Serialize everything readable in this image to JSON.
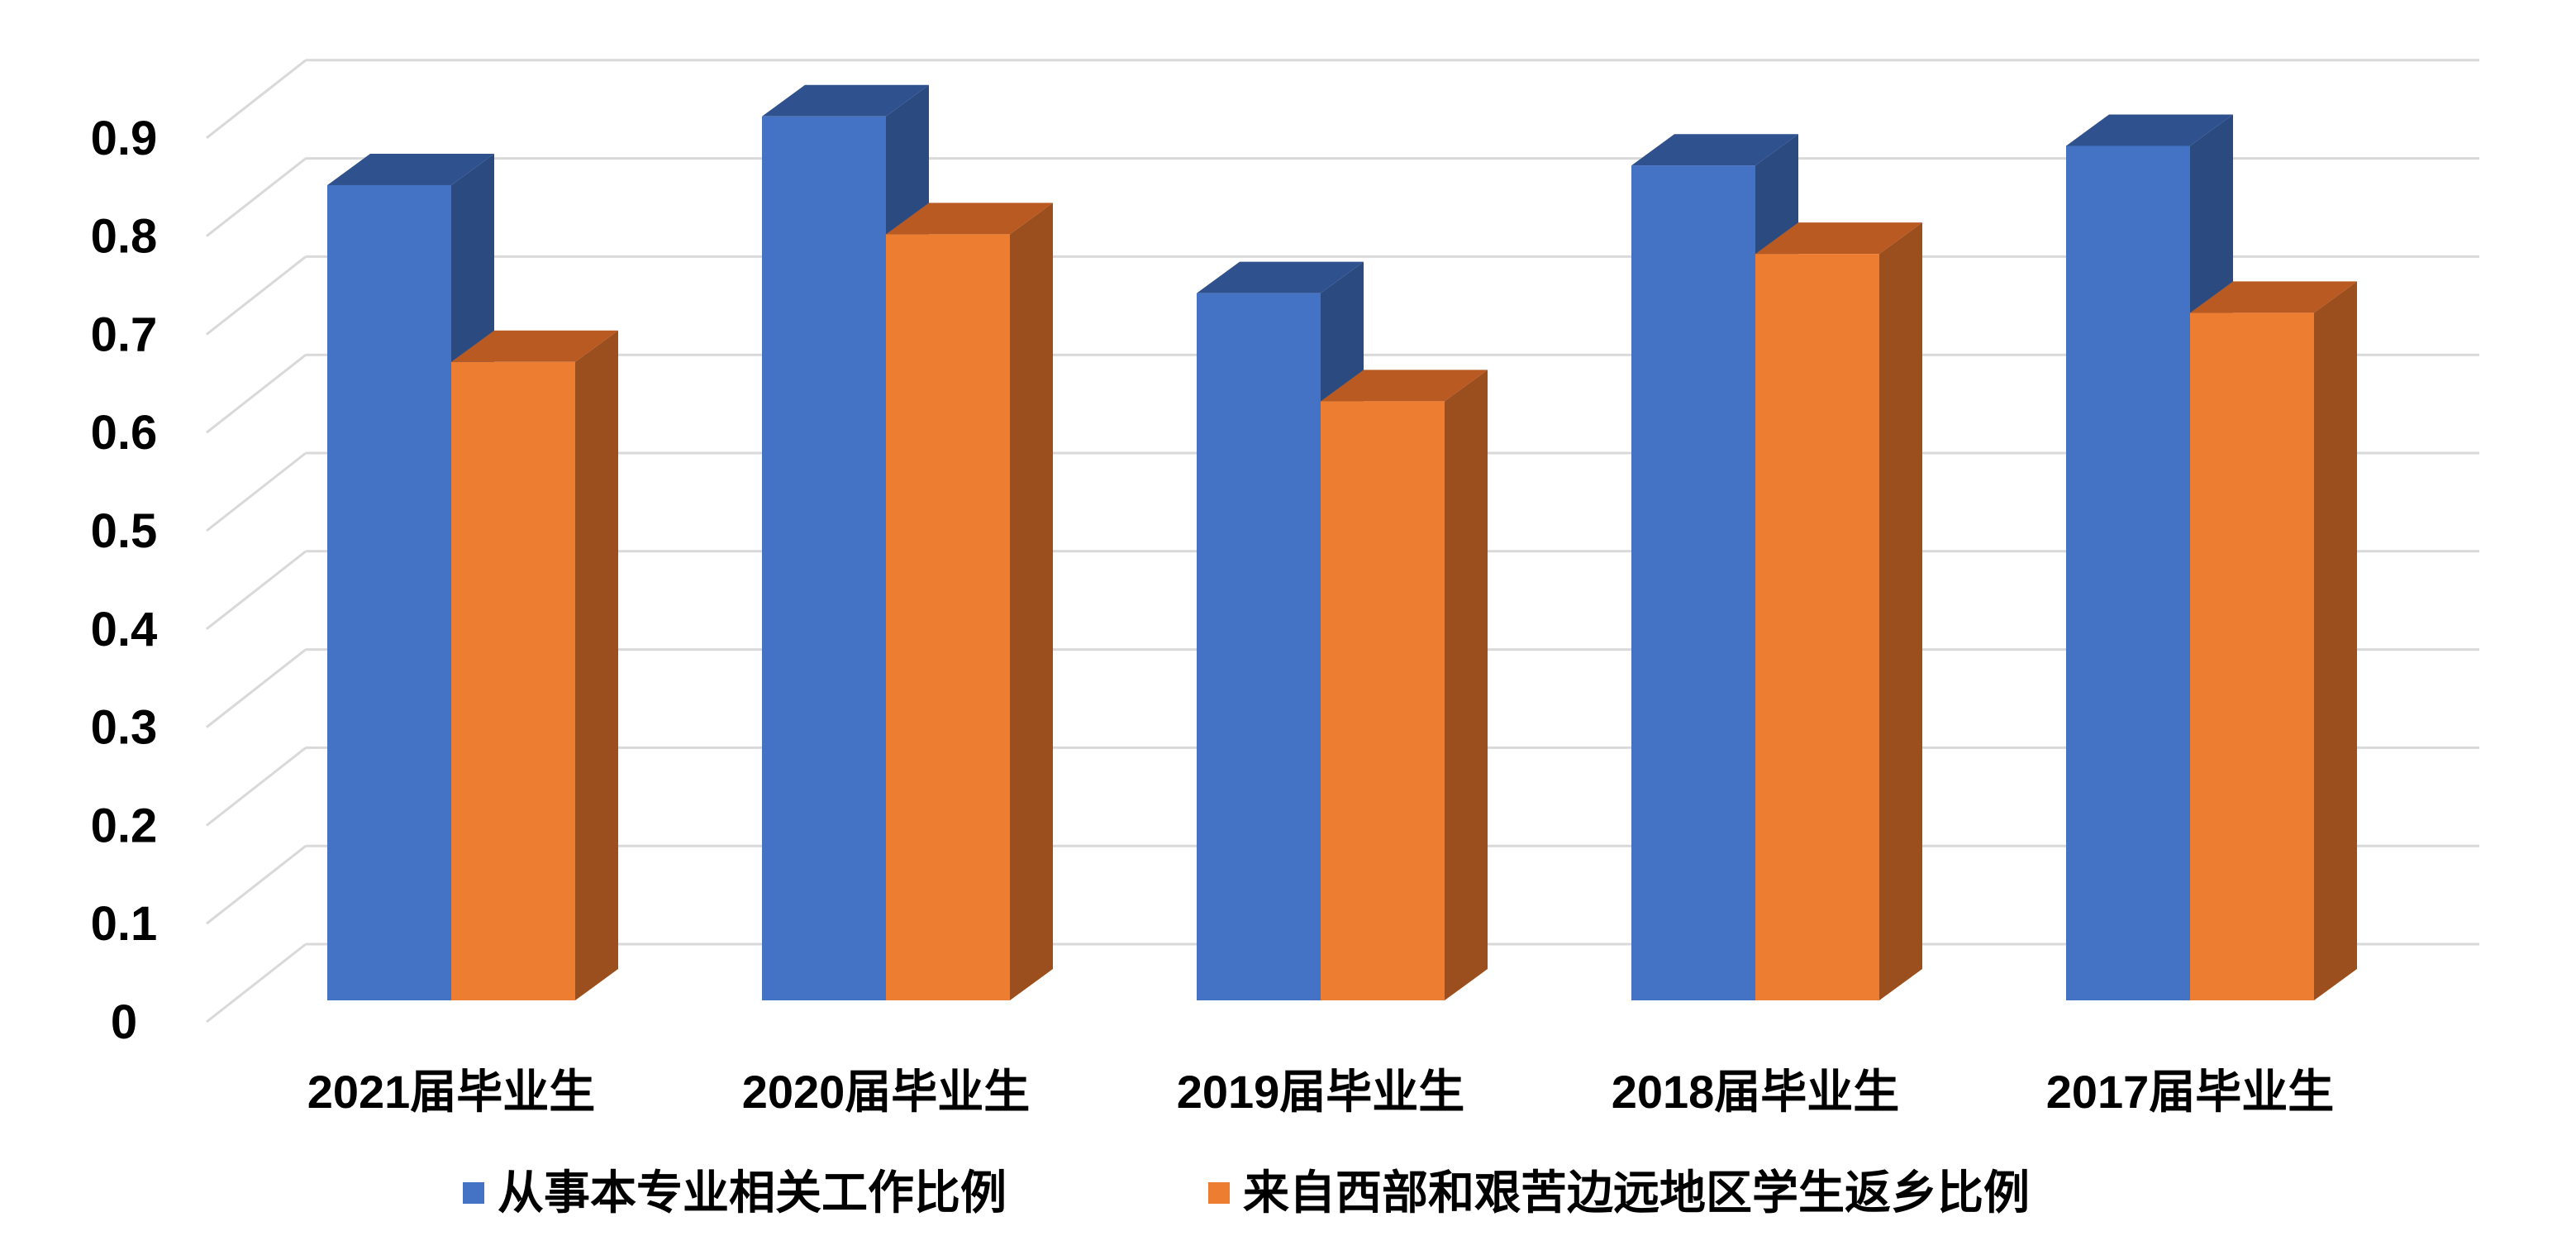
{
  "chart_data": {
    "type": "bar",
    "style": "3d-clustered-column",
    "categories": [
      "2021届毕业生",
      "2020届毕业生",
      "2019届毕业生",
      "2018届毕业生",
      "2017届毕业生"
    ],
    "series": [
      {
        "name": "从事本专业相关工作比例",
        "values": [
          0.83,
          0.9,
          0.72,
          0.85,
          0.87
        ],
        "color": "#4472C4"
      },
      {
        "name": "来自西部和艰苦边远地区学生返乡比例",
        "values": [
          0.65,
          0.78,
          0.61,
          0.76,
          0.7
        ],
        "color": "#ED7D31"
      }
    ],
    "y_ticks": [
      "0",
      "0.1",
      "0.2",
      "0.3",
      "0.4",
      "0.5",
      "0.6",
      "0.7",
      "0.8",
      "0.9"
    ],
    "ylim": [
      0,
      0.9
    ],
    "grid": true,
    "legend_position": "bottom",
    "title": "",
    "xlabel": "",
    "ylabel": ""
  }
}
